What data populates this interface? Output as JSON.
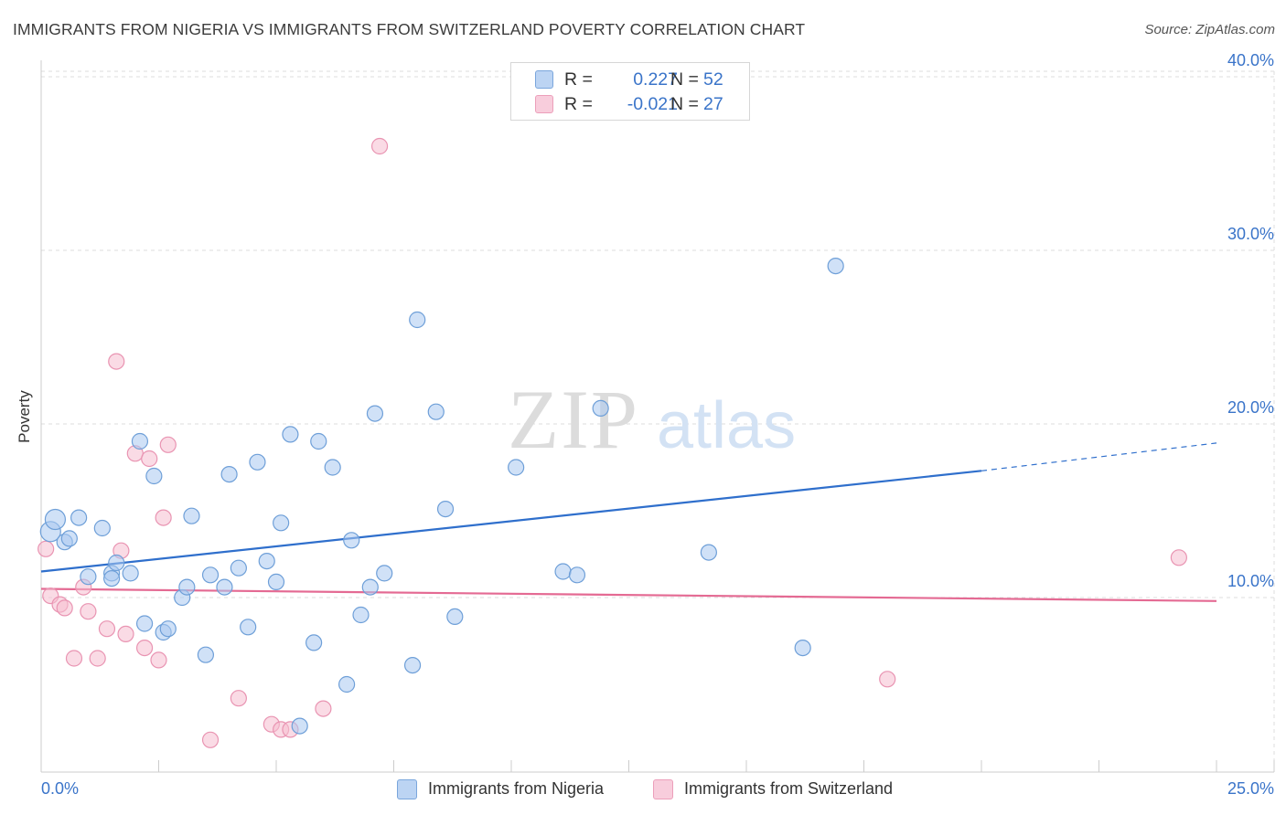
{
  "title": "IMMIGRANTS FROM NIGERIA VS IMMIGRANTS FROM SWITZERLAND POVERTY CORRELATION CHART",
  "source": "Source: ZipAtlas.com",
  "watermark": {
    "part1": "ZIP",
    "part2": "atlas"
  },
  "legend": {
    "rows": [
      {
        "r_label": "R =",
        "r_value": "0.227",
        "n_label": "N =",
        "n_value": "52"
      },
      {
        "r_label": "R =",
        "r_value": "-0.021",
        "n_label": "N =",
        "n_value": "27"
      }
    ]
  },
  "bottom_legend": {
    "nigeria": "Immigrants from Nigeria",
    "switzerland": "Immigrants from Switzerland"
  },
  "colors": {
    "nigeria_fill": "#a9c8f0",
    "nigeria_stroke": "#6e9fd8",
    "nigeria_line": "#2f6fcc",
    "switzerland_fill": "#f5bdd0",
    "switzerland_stroke": "#e994b2",
    "switzerland_line": "#e46a93",
    "tick_label": "#3a74c9",
    "grid": "#dddddd"
  },
  "chart_data": {
    "type": "scatter",
    "title": "IMMIGRANTS FROM NIGERIA VS IMMIGRANTS FROM SWITZERLAND POVERTY CORRELATION CHART",
    "xlabel": "",
    "ylabel": "Poverty",
    "xlim": [
      0,
      25
    ],
    "ylim": [
      0,
      42
    ],
    "x_tick_labels": [
      "0.0%",
      "25.0%"
    ],
    "y_ticks": [
      10,
      20,
      30,
      40
    ],
    "y_tick_labels": [
      "10.0%",
      "20.0%",
      "30.0%",
      "40.0%"
    ],
    "grid": true,
    "series": [
      {
        "name": "Immigrants from Nigeria",
        "R": 0.227,
        "N": 52,
        "trend": {
          "x0": 0,
          "y0": 11.5,
          "x1": 20,
          "y1": 17.3,
          "dashed_to_x": 25,
          "dashed_to_y": 18.9
        },
        "points": [
          [
            0.2,
            13.8
          ],
          [
            0.3,
            14.5
          ],
          [
            0.5,
            13.2
          ],
          [
            0.6,
            13.4
          ],
          [
            0.8,
            14.6
          ],
          [
            1.0,
            11.2
          ],
          [
            1.3,
            14.0
          ],
          [
            1.5,
            11.4
          ],
          [
            1.6,
            12.0
          ],
          [
            1.5,
            11.1
          ],
          [
            1.9,
            11.4
          ],
          [
            2.1,
            19.0
          ],
          [
            2.2,
            8.5
          ],
          [
            2.4,
            17.0
          ],
          [
            2.6,
            8.0
          ],
          [
            2.7,
            8.2
          ],
          [
            3.0,
            10.0
          ],
          [
            3.1,
            10.6
          ],
          [
            3.2,
            14.7
          ],
          [
            3.5,
            6.7
          ],
          [
            3.6,
            11.3
          ],
          [
            3.9,
            10.6
          ],
          [
            4.0,
            17.1
          ],
          [
            4.2,
            11.7
          ],
          [
            4.4,
            8.3
          ],
          [
            4.6,
            17.8
          ],
          [
            4.8,
            12.1
          ],
          [
            5.0,
            10.9
          ],
          [
            5.1,
            14.3
          ],
          [
            5.3,
            19.4
          ],
          [
            5.5,
            2.6
          ],
          [
            5.8,
            7.4
          ],
          [
            5.9,
            19.0
          ],
          [
            6.2,
            17.5
          ],
          [
            6.5,
            5.0
          ],
          [
            6.6,
            13.3
          ],
          [
            6.8,
            9.0
          ],
          [
            7.0,
            10.6
          ],
          [
            7.1,
            20.6
          ],
          [
            7.3,
            11.4
          ],
          [
            7.9,
            6.1
          ],
          [
            8.0,
            26.0
          ],
          [
            8.4,
            20.7
          ],
          [
            8.6,
            15.1
          ],
          [
            8.8,
            8.9
          ],
          [
            10.1,
            17.5
          ],
          [
            11.1,
            11.5
          ],
          [
            11.4,
            11.3
          ],
          [
            11.9,
            20.9
          ],
          [
            14.2,
            12.6
          ],
          [
            16.2,
            7.1
          ],
          [
            16.9,
            29.1
          ]
        ]
      },
      {
        "name": "Immigrants from Switzerland",
        "R": -0.021,
        "N": 27,
        "trend": {
          "x0": 0,
          "y0": 10.5,
          "x1": 25,
          "y1": 9.8
        },
        "points": [
          [
            0.1,
            12.8
          ],
          [
            0.2,
            10.1
          ],
          [
            0.4,
            9.6
          ],
          [
            0.5,
            9.4
          ],
          [
            0.7,
            6.5
          ],
          [
            0.9,
            10.6
          ],
          [
            1.0,
            9.2
          ],
          [
            1.2,
            6.5
          ],
          [
            1.4,
            8.2
          ],
          [
            1.6,
            23.6
          ],
          [
            1.7,
            12.7
          ],
          [
            1.8,
            7.9
          ],
          [
            2.0,
            18.3
          ],
          [
            2.2,
            7.1
          ],
          [
            2.3,
            18.0
          ],
          [
            2.5,
            6.4
          ],
          [
            2.6,
            14.6
          ],
          [
            2.7,
            18.8
          ],
          [
            3.6,
            1.8
          ],
          [
            4.2,
            4.2
          ],
          [
            4.9,
            2.7
          ],
          [
            5.1,
            2.4
          ],
          [
            5.3,
            2.4
          ],
          [
            6.0,
            3.6
          ],
          [
            7.2,
            36.0
          ],
          [
            18.0,
            5.3
          ],
          [
            24.2,
            12.3
          ]
        ]
      }
    ]
  }
}
